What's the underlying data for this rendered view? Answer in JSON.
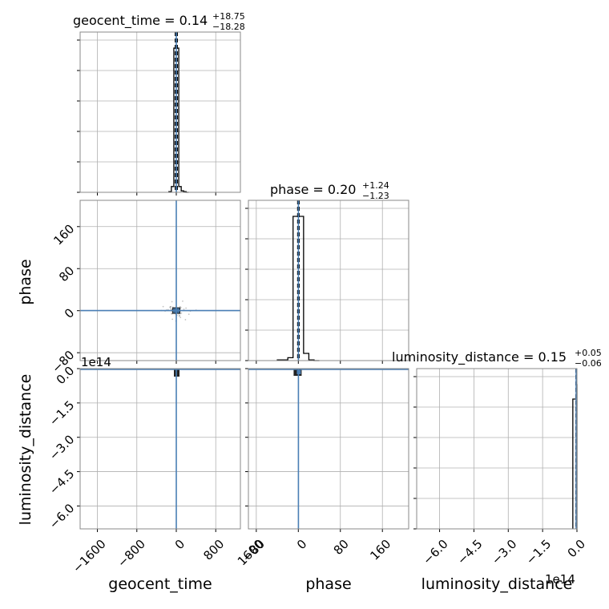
{
  "chart_data": {
    "type": "corner",
    "parameters": [
      "geocent_time",
      "phase",
      "luminosity_distance"
    ],
    "titles": [
      {
        "name": "geocent_time",
        "median": "0.14",
        "plus": "+18.75",
        "minus": "−18.28"
      },
      {
        "name": "phase",
        "median": "0.20",
        "plus": "+1.24",
        "minus": "−1.23"
      },
      {
        "name": "luminosity_distance",
        "median": "0.15",
        "plus": "+0.05",
        "minus": "−0.06"
      }
    ],
    "ranges": {
      "geocent_time": [
        -1950,
        1300
      ],
      "phase": [
        -95,
        210
      ],
      "luminosity_distance": [
        -7.0,
        0.0
      ]
    },
    "x_ticks": {
      "geocent_time": [
        "−1600",
        "−800",
        "0",
        "800",
        "1600"
      ],
      "phase": [
        "−80",
        "0",
        "80",
        "160"
      ],
      "luminosity_distance": [
        "−6.0",
        "−4.5",
        "−3.0",
        "−1.5",
        "0.0"
      ]
    },
    "x_tick_values": {
      "geocent_time": [
        -1600,
        -800,
        0,
        800,
        1600
      ],
      "phase": [
        -80,
        0,
        80,
        160
      ],
      "luminosity_distance": [
        -6.0,
        -4.5,
        -3.0,
        -1.5,
        0.0
      ]
    },
    "y_ticks": {
      "phase": [
        "−80",
        "0",
        "80",
        "160"
      ],
      "luminosity_distance": [
        "−6.0",
        "−4.5",
        "−3.0",
        "−1.5",
        "0.0"
      ]
    },
    "y_tick_values": {
      "phase": [
        -80,
        0,
        80,
        160
      ],
      "luminosity_distance": [
        -6.0,
        -4.5,
        -3.0,
        -1.5,
        0.0
      ]
    },
    "offset_label": "1e14",
    "histograms": {
      "geocent_time": {
        "edges": [
          -150,
          -100,
          -50,
          0,
          50,
          100,
          150,
          200,
          250
        ],
        "counts": [
          0.005,
          0.04,
          1.0,
          1.0,
          0.04,
          0.01,
          0.005,
          0.0
        ]
      },
      "phase": {
        "edges": [
          -40,
          -20,
          -10,
          0,
          10,
          20,
          30,
          40
        ],
        "counts": [
          0.005,
          0.02,
          1.0,
          1.0,
          0.05,
          0.005,
          0.0
        ]
      },
      "luminosity_distance": {
        "edges": [
          -0.18,
          -0.03,
          0.0
        ],
        "counts": [
          0.9,
          1.0
        ]
      }
    },
    "truths": {
      "geocent_time": 0.14,
      "phase": 0.2,
      "luminosity_distance": 0.0
    },
    "quantile_lines": {
      "geocent_time": [
        -18.14,
        0.14,
        18.89
      ],
      "phase": [
        -1.03,
        0.2,
        1.44
      ],
      "luminosity_distance": [
        0.09,
        0.15,
        0.2
      ]
    },
    "colors": {
      "truth": "#4a7fb5",
      "hist": "#000000",
      "grid": "#b0b0b0",
      "points": "#555555"
    },
    "grid": true
  }
}
